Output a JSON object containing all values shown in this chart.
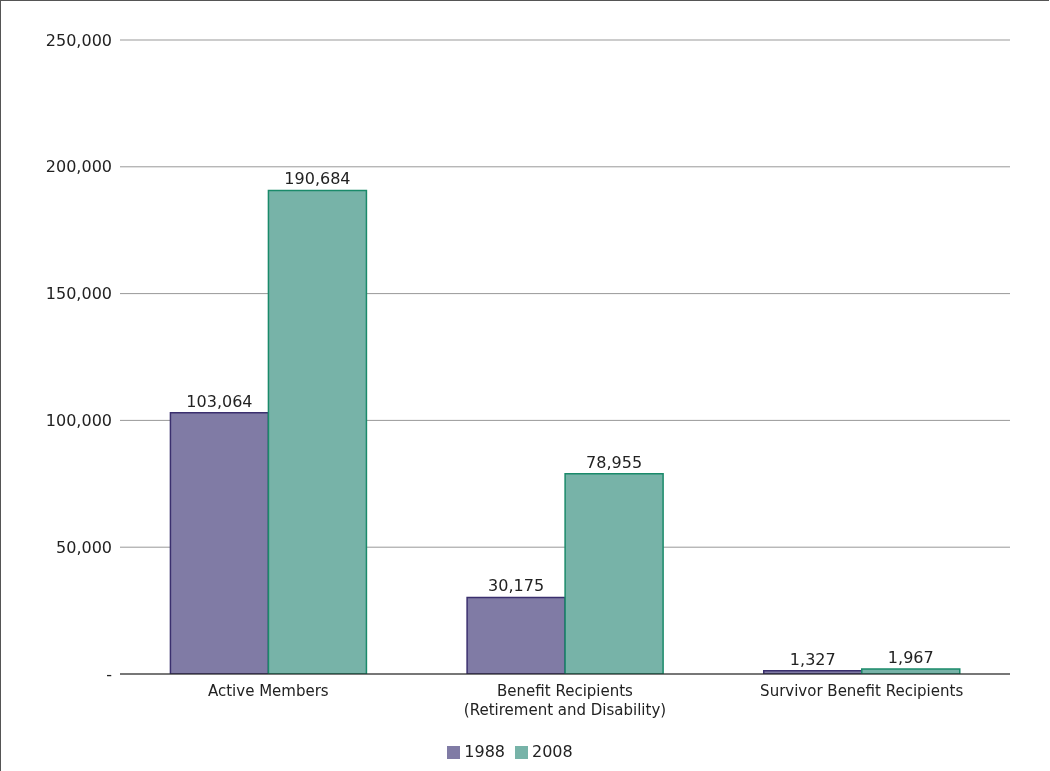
{
  "chart_data": {
    "type": "bar",
    "categories": [
      "Active Members",
      "Benefit Recipients\n(Retirement and Disability)",
      "Survivor Benefit Recipients"
    ],
    "series": [
      {
        "name": "1988",
        "color": "#807ba5",
        "values": [
          103064,
          30175,
          1327
        ],
        "value_labels": [
          "103,064",
          "30,175",
          "1,327"
        ]
      },
      {
        "name": "2008",
        "color": "#77b3a8",
        "values": [
          190684,
          78955,
          1967
        ],
        "value_labels": [
          "190,684",
          "78,955",
          "1,967"
        ]
      }
    ],
    "ylim": [
      0,
      250000
    ],
    "yticks": [
      {
        "value": 0,
        "label": "-"
      },
      {
        "value": 50000,
        "label": "50,000"
      },
      {
        "value": 100000,
        "label": "100,000"
      },
      {
        "value": 150000,
        "label": "150,000"
      },
      {
        "value": 200000,
        "label": "200,000"
      },
      {
        "value": 250000,
        "label": "250,000"
      }
    ],
    "grid": "y",
    "legend": "bottom"
  }
}
